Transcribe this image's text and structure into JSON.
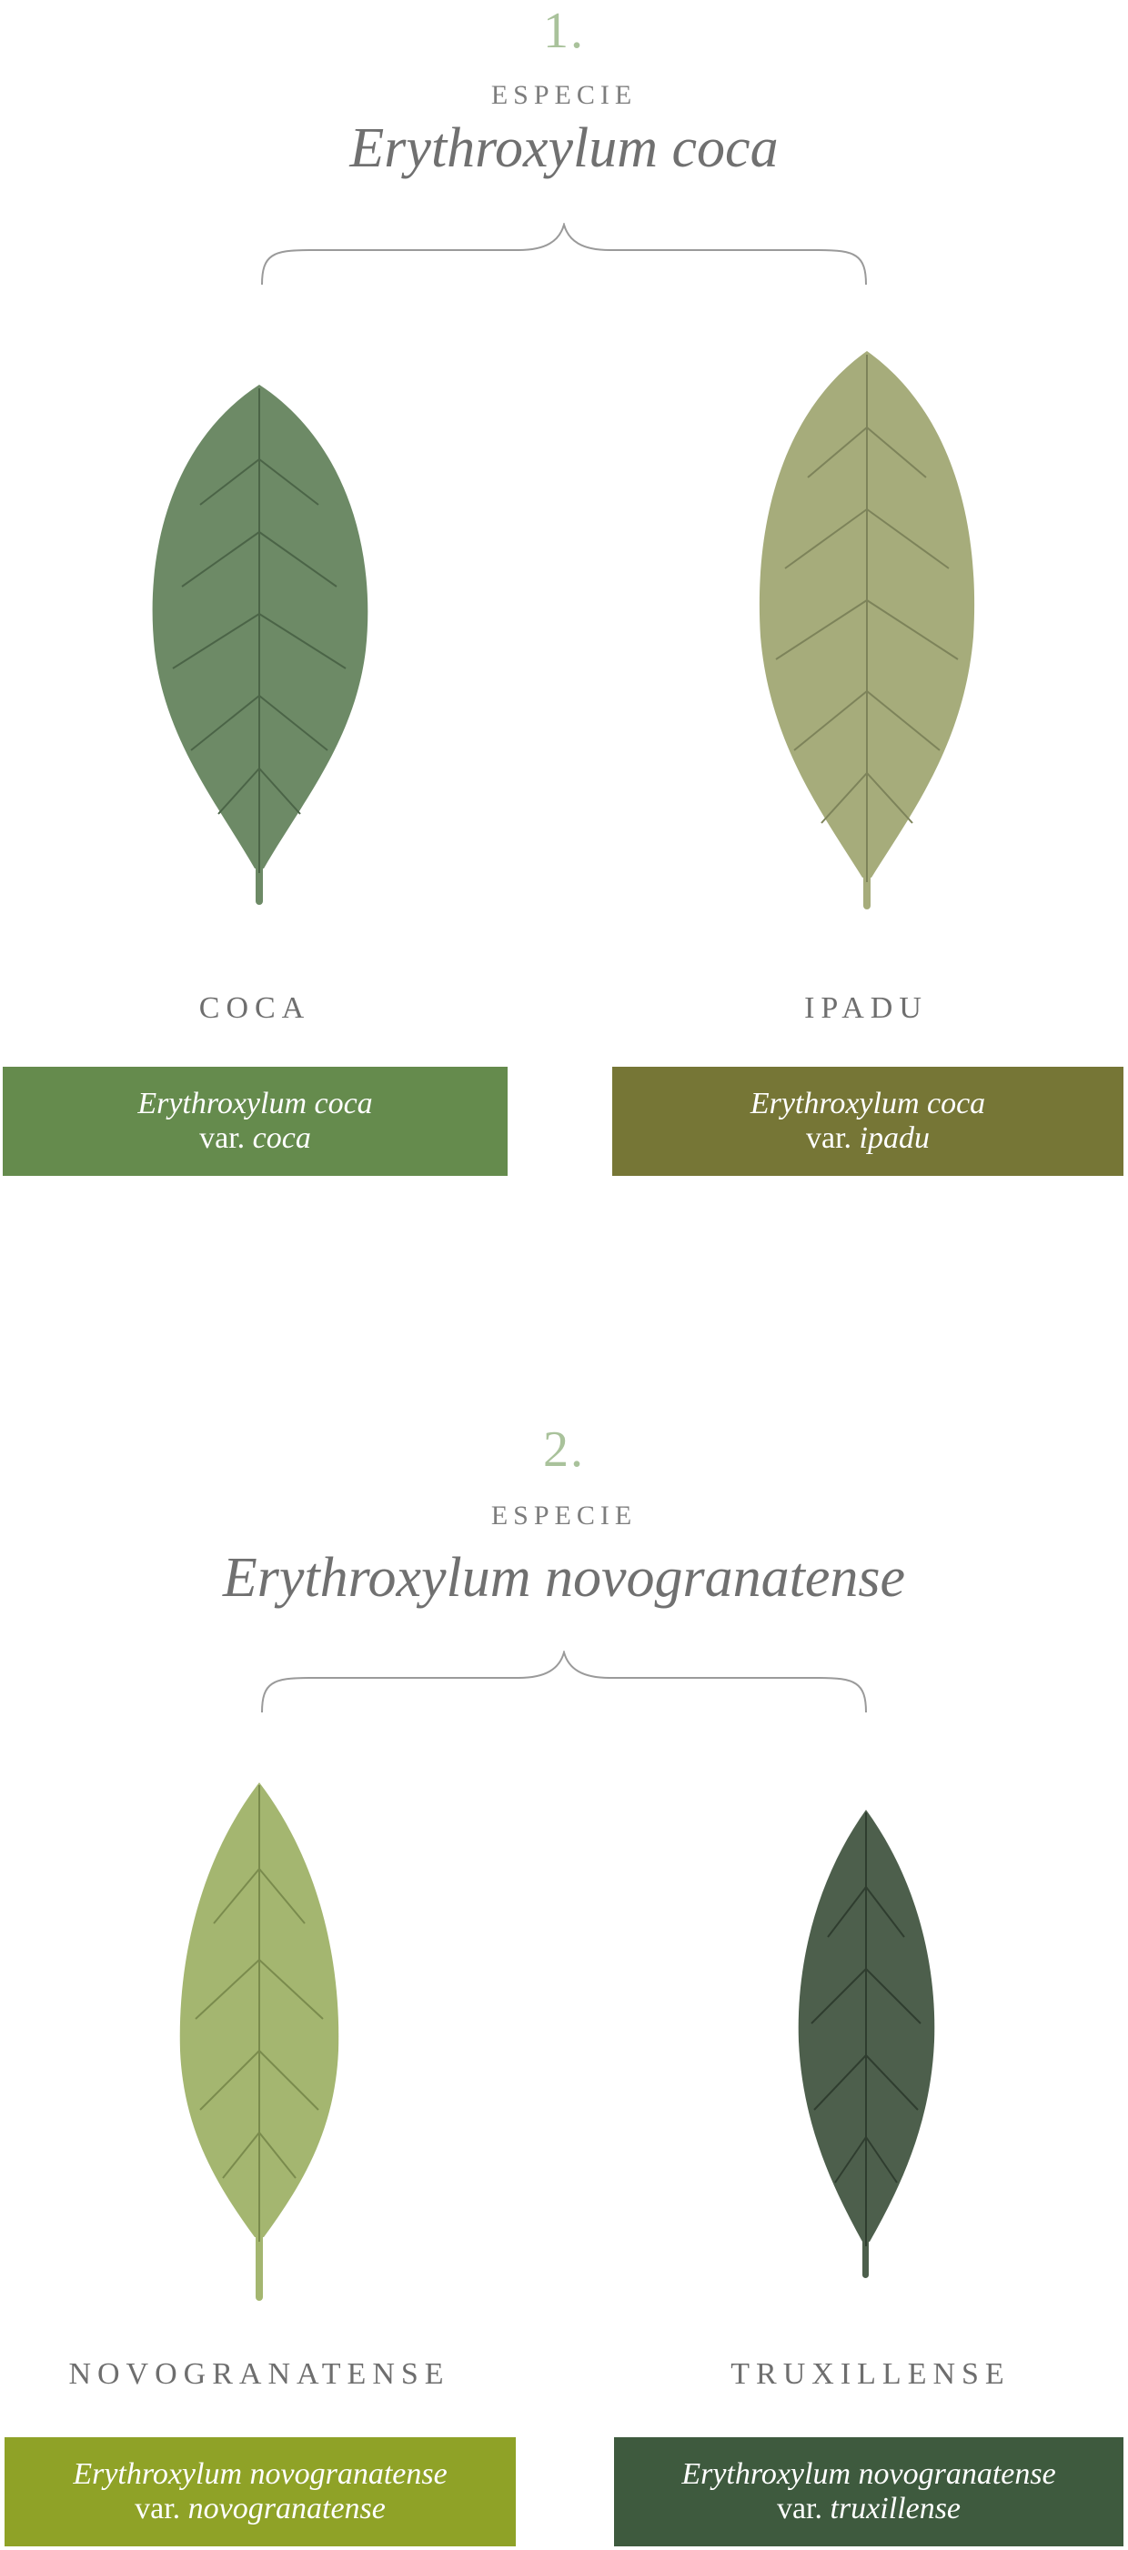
{
  "sections": [
    {
      "number": "1.",
      "kicker": "ESPECIE",
      "species": "Erythroxylum coca",
      "varieties": [
        {
          "name": "COCA",
          "scientific": "Erythroxylum coca",
          "var_prefix": "var.",
          "var_epithet": "coca",
          "color": "#658b4d",
          "leaf_color": "#6d8a66",
          "leaf_vein": "#4b6447"
        },
        {
          "name": "IPADU",
          "scientific": "Erythroxylum coca",
          "var_prefix": "var.",
          "var_epithet": "ipadu",
          "color": "#767636",
          "leaf_color": "#a6ac7b",
          "leaf_vein": "#7d835a"
        }
      ]
    },
    {
      "number": "2.",
      "kicker": "ESPECIE",
      "species": "Erythroxylum novogranatense",
      "varieties": [
        {
          "name": "NOVOGRANATENSE",
          "scientific": "Erythroxylum novogranatense",
          "var_prefix": "var.",
          "var_epithet": "novogranatense",
          "color": "#8fa227",
          "leaf_color": "#a4b670",
          "leaf_vein": "#7a8b4d"
        },
        {
          "name": "TRUXILLENSE",
          "scientific": "Erythroxylum novogranatense",
          "var_prefix": "var.",
          "var_epithet": "truxillense",
          "color": "#3e5a3e",
          "leaf_color": "#4d5f4c",
          "leaf_vein": "#2f3d2f"
        }
      ]
    }
  ]
}
